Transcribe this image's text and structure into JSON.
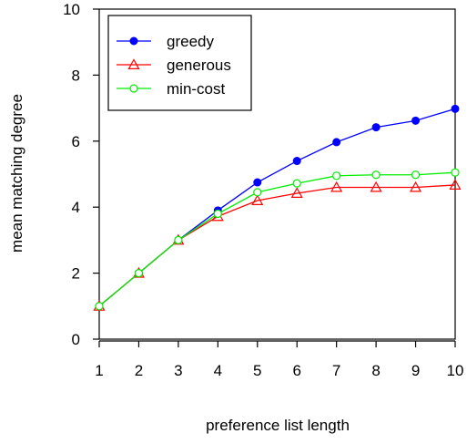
{
  "chart_data": {
    "type": "line",
    "title": "",
    "xlabel": "preference list length",
    "ylabel": "mean matching degree",
    "x": [
      1,
      2,
      3,
      4,
      5,
      6,
      7,
      8,
      9,
      10
    ],
    "xlim": [
      1,
      10
    ],
    "ylim": [
      0,
      10
    ],
    "x_ticks": [
      1,
      2,
      3,
      4,
      5,
      6,
      7,
      8,
      9,
      10
    ],
    "y_ticks": [
      0,
      2,
      4,
      6,
      8,
      10
    ],
    "grid": false,
    "legend_position": "top-left",
    "series": [
      {
        "name": "greedy",
        "color": "#0000ff",
        "marker": "filled-circle",
        "values": [
          1.0,
          2.0,
          3.0,
          3.9,
          4.75,
          5.4,
          5.97,
          6.42,
          6.62,
          6.98
        ]
      },
      {
        "name": "generous",
        "color": "#ff0000",
        "marker": "open-triangle",
        "values": [
          1.0,
          2.0,
          3.0,
          3.72,
          4.2,
          4.42,
          4.6,
          4.6,
          4.6,
          4.67
        ]
      },
      {
        "name": "min-cost",
        "color": "#00ee00",
        "marker": "open-circle",
        "values": [
          1.0,
          2.0,
          3.0,
          3.8,
          4.45,
          4.72,
          4.95,
          4.98,
          4.98,
          5.05
        ]
      }
    ]
  }
}
